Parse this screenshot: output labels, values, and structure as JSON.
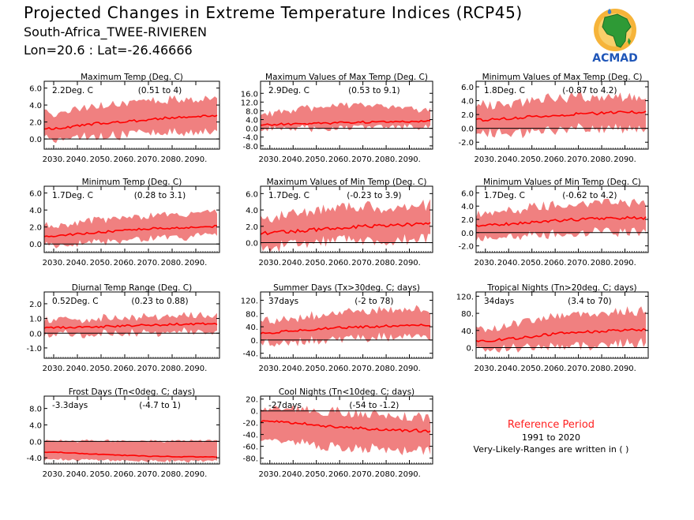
{
  "header": {
    "title": "Projected Changes in Extreme Temperature Indices (RCP45)",
    "subtitle": "South-Africa_TWEE-RIVIEREN",
    "coords": "Lon=20.6 : Lat=-26.46666"
  },
  "logo": {
    "text": "ACMAD",
    "icon": "africa-map-icon"
  },
  "reference": {
    "title": "Reference Period",
    "years": "1991 to 2020",
    "note": "Very-Likely-Ranges are written in ( )"
  },
  "colors": {
    "band": "#f08080",
    "line": "#ff0000",
    "zero": "#000000",
    "ref_title": "#ff1f1f"
  },
  "chart_data": [
    {
      "type": "area",
      "title": "Maximum Temp (Deg. C)",
      "value_label": "2.2Deg. C",
      "range_label": "(0.51 to 4)",
      "ylim": [
        -1.2,
        6.8
      ],
      "yticks": [
        "6.0",
        "4.0",
        "2.0",
        "0.0"
      ],
      "xticks": [
        "2030.",
        "2040.",
        "2050.",
        "2060.",
        "2070.",
        "2080.",
        "2090."
      ],
      "xlim": [
        2026,
        2100
      ],
      "x": [
        2030,
        2040,
        2050,
        2060,
        2070,
        2080,
        2090,
        2099
      ],
      "median": [
        1.2,
        1.5,
        1.9,
        2.0,
        2.3,
        2.5,
        2.6,
        2.8
      ],
      "low": [
        0.2,
        0.3,
        0.5,
        0.6,
        0.9,
        1.0,
        1.1,
        1.2
      ],
      "high": [
        2.8,
        3.3,
        3.8,
        4.0,
        4.3,
        4.5,
        4.6,
        4.7
      ],
      "noise": 0.5
    },
    {
      "type": "area",
      "title": "Maximum Values of Max Temp (Deg. C)",
      "value_label": "2.9Deg. C",
      "range_label": "(0.53 to 9.1)",
      "ylim": [
        -9.5,
        21.5
      ],
      "yticks": [
        "16.0",
        "12.0",
        "8.0",
        "4.0",
        "0.0",
        "-4.0",
        "-8.0"
      ],
      "xticks": [
        "2030.",
        "2040.",
        "2050.",
        "2060.",
        "2070.",
        "2080.",
        "2090."
      ],
      "xlim": [
        2026,
        2100
      ],
      "x": [
        2030,
        2040,
        2050,
        2060,
        2070,
        2080,
        2090,
        2099
      ],
      "median": [
        1.8,
        2.0,
        2.2,
        2.6,
        2.8,
        3.0,
        3.2,
        3.4
      ],
      "low": [
        0.4,
        0.5,
        0.6,
        0.7,
        0.8,
        1.0,
        1.1,
        1.2
      ],
      "high": [
        6.5,
        8.0,
        9.5,
        10.5,
        10.0,
        9.0,
        8.5,
        8.0
      ],
      "noise": 1.6
    },
    {
      "type": "area",
      "title": "Minimum Values of Max Temp (Deg. C)",
      "value_label": "1.8Deg. C",
      "range_label": "(-0.87 to 4.2)",
      "ylim": [
        -3.0,
        6.8
      ],
      "yticks": [
        "6.0",
        "4.0",
        "2.0",
        "0.0",
        "-2.0"
      ],
      "xticks": [
        "2030.",
        "2040.",
        "2050.",
        "2060.",
        "2070.",
        "2080.",
        "2090."
      ],
      "xlim": [
        2026,
        2100
      ],
      "x": [
        2030,
        2040,
        2050,
        2060,
        2070,
        2080,
        2090,
        2099
      ],
      "median": [
        1.2,
        1.4,
        1.7,
        1.9,
        2.1,
        2.2,
        2.3,
        2.4
      ],
      "low": [
        -0.5,
        -0.4,
        -0.3,
        0.0,
        0.2,
        0.3,
        0.3,
        0.4
      ],
      "high": [
        3.0,
        3.4,
        3.8,
        4.0,
        4.2,
        4.3,
        4.4,
        4.4
      ],
      "noise": 0.7
    },
    {
      "type": "area",
      "title": "Minimum Temp (Deg. C)",
      "value_label": "1.7Deg. C",
      "range_label": "(0.28 to 3.1)",
      "ylim": [
        -1.0,
        6.8
      ],
      "yticks": [
        "6.0",
        "4.0",
        "2.0",
        "0.0"
      ],
      "xticks": [
        "2030.",
        "2040.",
        "2050.",
        "2060.",
        "2070.",
        "2080.",
        "2090."
      ],
      "xlim": [
        2026,
        2100
      ],
      "x": [
        2030,
        2040,
        2050,
        2060,
        2070,
        2080,
        2090,
        2099
      ],
      "median": [
        0.9,
        1.2,
        1.4,
        1.6,
        1.8,
        1.9,
        2.0,
        2.1
      ],
      "low": [
        0.0,
        0.2,
        0.4,
        0.6,
        0.8,
        0.9,
        1.0,
        1.1
      ],
      "high": [
        2.0,
        2.4,
        2.8,
        3.0,
        3.2,
        3.3,
        3.4,
        3.5
      ],
      "noise": 0.4
    },
    {
      "type": "area",
      "title": "Maximum Values of Min Temp (Deg. C)",
      "value_label": "1.7Deg. C",
      "range_label": "(-0.23 to 3.9)",
      "ylim": [
        -1.2,
        6.9
      ],
      "yticks": [
        "6.0",
        "4.0",
        "2.0",
        "0.0"
      ],
      "xticks": [
        "2030.",
        "2040.",
        "2050.",
        "2060.",
        "2070.",
        "2080.",
        "2090."
      ],
      "xlim": [
        2026,
        2100
      ],
      "x": [
        2030,
        2040,
        2050,
        2060,
        2070,
        2080,
        2090,
        2099
      ],
      "median": [
        1.2,
        1.4,
        1.6,
        1.8,
        2.0,
        2.1,
        2.2,
        2.3
      ],
      "low": [
        -0.2,
        0.0,
        0.2,
        0.4,
        0.5,
        0.6,
        0.7,
        0.8
      ],
      "high": [
        2.8,
        3.2,
        3.6,
        3.9,
        4.1,
        4.2,
        4.3,
        4.3
      ],
      "noise": 0.7
    },
    {
      "type": "area",
      "title": "Minimum Values of Min Temp (Deg. C)",
      "value_label": "1.7Deg. C",
      "range_label": "(-0.62 to 4.2)",
      "ylim": [
        -3.0,
        7.0
      ],
      "yticks": [
        "6.0",
        "4.0",
        "2.0",
        "0.0",
        "-2.0"
      ],
      "xticks": [
        "2030.",
        "2040.",
        "2050.",
        "2060.",
        "2070.",
        "2080.",
        "2090."
      ],
      "xlim": [
        2026,
        2100
      ],
      "x": [
        2030,
        2040,
        2050,
        2060,
        2070,
        2080,
        2090,
        2099
      ],
      "median": [
        1.1,
        1.3,
        1.6,
        1.8,
        2.0,
        2.1,
        2.2,
        2.2
      ],
      "low": [
        -0.6,
        -0.4,
        -0.2,
        0.0,
        0.2,
        0.3,
        0.3,
        0.4
      ],
      "high": [
        2.8,
        3.2,
        3.6,
        3.9,
        4.1,
        4.2,
        4.3,
        4.3
      ],
      "noise": 0.7
    },
    {
      "type": "area",
      "title": "Diurnal Temp Range (Deg. C)",
      "value_label": "0.52Deg. C",
      "range_label": "(0.23 to 0.88)",
      "ylim": [
        -1.7,
        2.8
      ],
      "yticks": [
        "2.0",
        "1.0",
        "0.0",
        "-1.0"
      ],
      "xticks": [
        "2030.",
        "2040.",
        "2050.",
        "2060.",
        "2070.",
        "2080.",
        "2090."
      ],
      "xlim": [
        2026,
        2100
      ],
      "x": [
        2030,
        2040,
        2050,
        2060,
        2070,
        2080,
        2090,
        2099
      ],
      "median": [
        0.35,
        0.4,
        0.45,
        0.5,
        0.55,
        0.6,
        0.62,
        0.65
      ],
      "low": [
        0.0,
        0.0,
        0.05,
        0.1,
        0.15,
        0.2,
        0.2,
        0.22
      ],
      "high": [
        0.8,
        0.85,
        0.95,
        1.0,
        1.05,
        1.1,
        1.1,
        1.15
      ],
      "noise": 0.25
    },
    {
      "type": "area",
      "title": "Summer Days (Tx>30deg. C; days)",
      "value_label": "37days",
      "range_label": "(-2 to 78)",
      "ylim": [
        -55,
        145
      ],
      "yticks": [
        "120.",
        "80.",
        "40.",
        "0.",
        "-40."
      ],
      "xticks": [
        "2030.",
        "2040.",
        "2050.",
        "2060.",
        "2070.",
        "2080.",
        "2090."
      ],
      "xlim": [
        2026,
        2100
      ],
      "x": [
        2030,
        2040,
        2050,
        2060,
        2070,
        2080,
        2090,
        2099
      ],
      "median": [
        22,
        28,
        33,
        37,
        40,
        42,
        44,
        45
      ],
      "low": [
        -5,
        -2,
        2,
        6,
        10,
        12,
        14,
        15
      ],
      "high": [
        55,
        62,
        70,
        78,
        82,
        85,
        86,
        88
      ],
      "noise": 12
    },
    {
      "type": "area",
      "title": "Tropical Nights (Tn>20deg. C; days)",
      "value_label": "34days",
      "range_label": "(3.4 to 70)",
      "ylim": [
        -25,
        130
      ],
      "yticks": [
        "120.",
        "80.",
        "40.",
        "0."
      ],
      "xticks": [
        "2030.",
        "2040.",
        "2050.",
        "2060.",
        "2070.",
        "2080.",
        "2090."
      ],
      "xlim": [
        2026,
        2100
      ],
      "x": [
        2030,
        2040,
        2050,
        2060,
        2070,
        2080,
        2090,
        2099
      ],
      "median": [
        15,
        20,
        26,
        32,
        36,
        38,
        40,
        42
      ],
      "low": [
        0,
        2,
        4,
        6,
        8,
        10,
        12,
        14
      ],
      "high": [
        40,
        50,
        60,
        70,
        75,
        78,
        80,
        82
      ],
      "noise": 10
    },
    {
      "type": "area",
      "title": "Frost Days (Tn<0deg. C; days)",
      "value_label": "-3.3days",
      "range_label": "(-4.7 to 1)",
      "ylim": [
        -5.5,
        11.0
      ],
      "yticks": [
        "8.0",
        "4.0",
        "0.0",
        "-4.0"
      ],
      "xticks": [
        "2030.",
        "2040.",
        "2050.",
        "2060.",
        "2070.",
        "2080.",
        "2090."
      ],
      "xlim": [
        2026,
        2100
      ],
      "x": [
        2030,
        2040,
        2050,
        2060,
        2070,
        2080,
        2090,
        2099
      ],
      "median": [
        -2.6,
        -2.9,
        -3.2,
        -3.4,
        -3.6,
        -3.7,
        -3.8,
        -3.8
      ],
      "low": [
        -4.3,
        -4.4,
        -4.5,
        -4.6,
        -4.7,
        -4.7,
        -4.7,
        -4.7
      ],
      "high": [
        0.0,
        0.0,
        0.0,
        0.0,
        0.0,
        0.0,
        0.0,
        0.0
      ],
      "noise": 0.3
    },
    {
      "type": "area",
      "title": "Cool Nights (Tn<10deg. C; days)",
      "value_label": "-27days",
      "range_label": "(-54 to -1.2)",
      "ylim": [
        -90,
        25
      ],
      "yticks": [
        "20.",
        "0.",
        "-20.",
        "-40.",
        "-60.",
        "-80."
      ],
      "xticks": [
        "2030.",
        "2040.",
        "2050.",
        "2060.",
        "2070.",
        "2080.",
        "2090."
      ],
      "xlim": [
        2026,
        2100
      ],
      "x": [
        2030,
        2040,
        2050,
        2060,
        2070,
        2080,
        2090,
        2099
      ],
      "median": [
        -18,
        -20,
        -24,
        -27,
        -30,
        -32,
        -33,
        -34
      ],
      "low": [
        -45,
        -50,
        -55,
        -60,
        -62,
        -63,
        -64,
        -65
      ],
      "high": [
        2,
        0,
        -3,
        -6,
        -10,
        -12,
        -13,
        -14
      ],
      "noise": 8
    }
  ]
}
